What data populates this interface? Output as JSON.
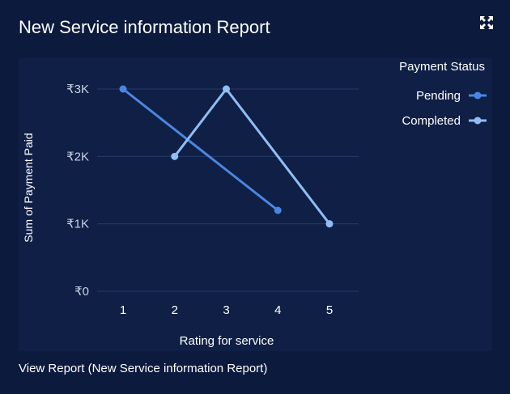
{
  "card": {
    "title": "New Service information Report",
    "expand_icon": "expand-icon",
    "footer_link": "View Report (New Service information Report)"
  },
  "colors": {
    "background": "#0c1a3d",
    "plot_background": "#0f1f45",
    "grid": "#2a3a66",
    "pending": "#4a86e0",
    "completed": "#8fbef5",
    "text": "#ffffff",
    "tick_text": "#c9d2e6"
  },
  "chart_data": {
    "type": "line",
    "title": "",
    "xlabel": "Rating for service",
    "ylabel": "Sum of Payment Paid",
    "categories": [
      "1",
      "2",
      "3",
      "4",
      "5"
    ],
    "y_ticks": [
      0,
      1000,
      2000,
      3000
    ],
    "y_tick_labels": [
      "₹0",
      "₹1K",
      "₹2K",
      "₹3K"
    ],
    "ylim": [
      0,
      3000
    ],
    "grid": true,
    "legend": {
      "title": "Payment Status",
      "placement": "top-right"
    },
    "series": [
      {
        "name": "Pending",
        "x": [
          "1",
          "4"
        ],
        "values": [
          3000,
          1200
        ]
      },
      {
        "name": "Completed",
        "x": [
          "2",
          "3",
          "5"
        ],
        "values": [
          2000,
          3000,
          1000
        ]
      }
    ]
  }
}
